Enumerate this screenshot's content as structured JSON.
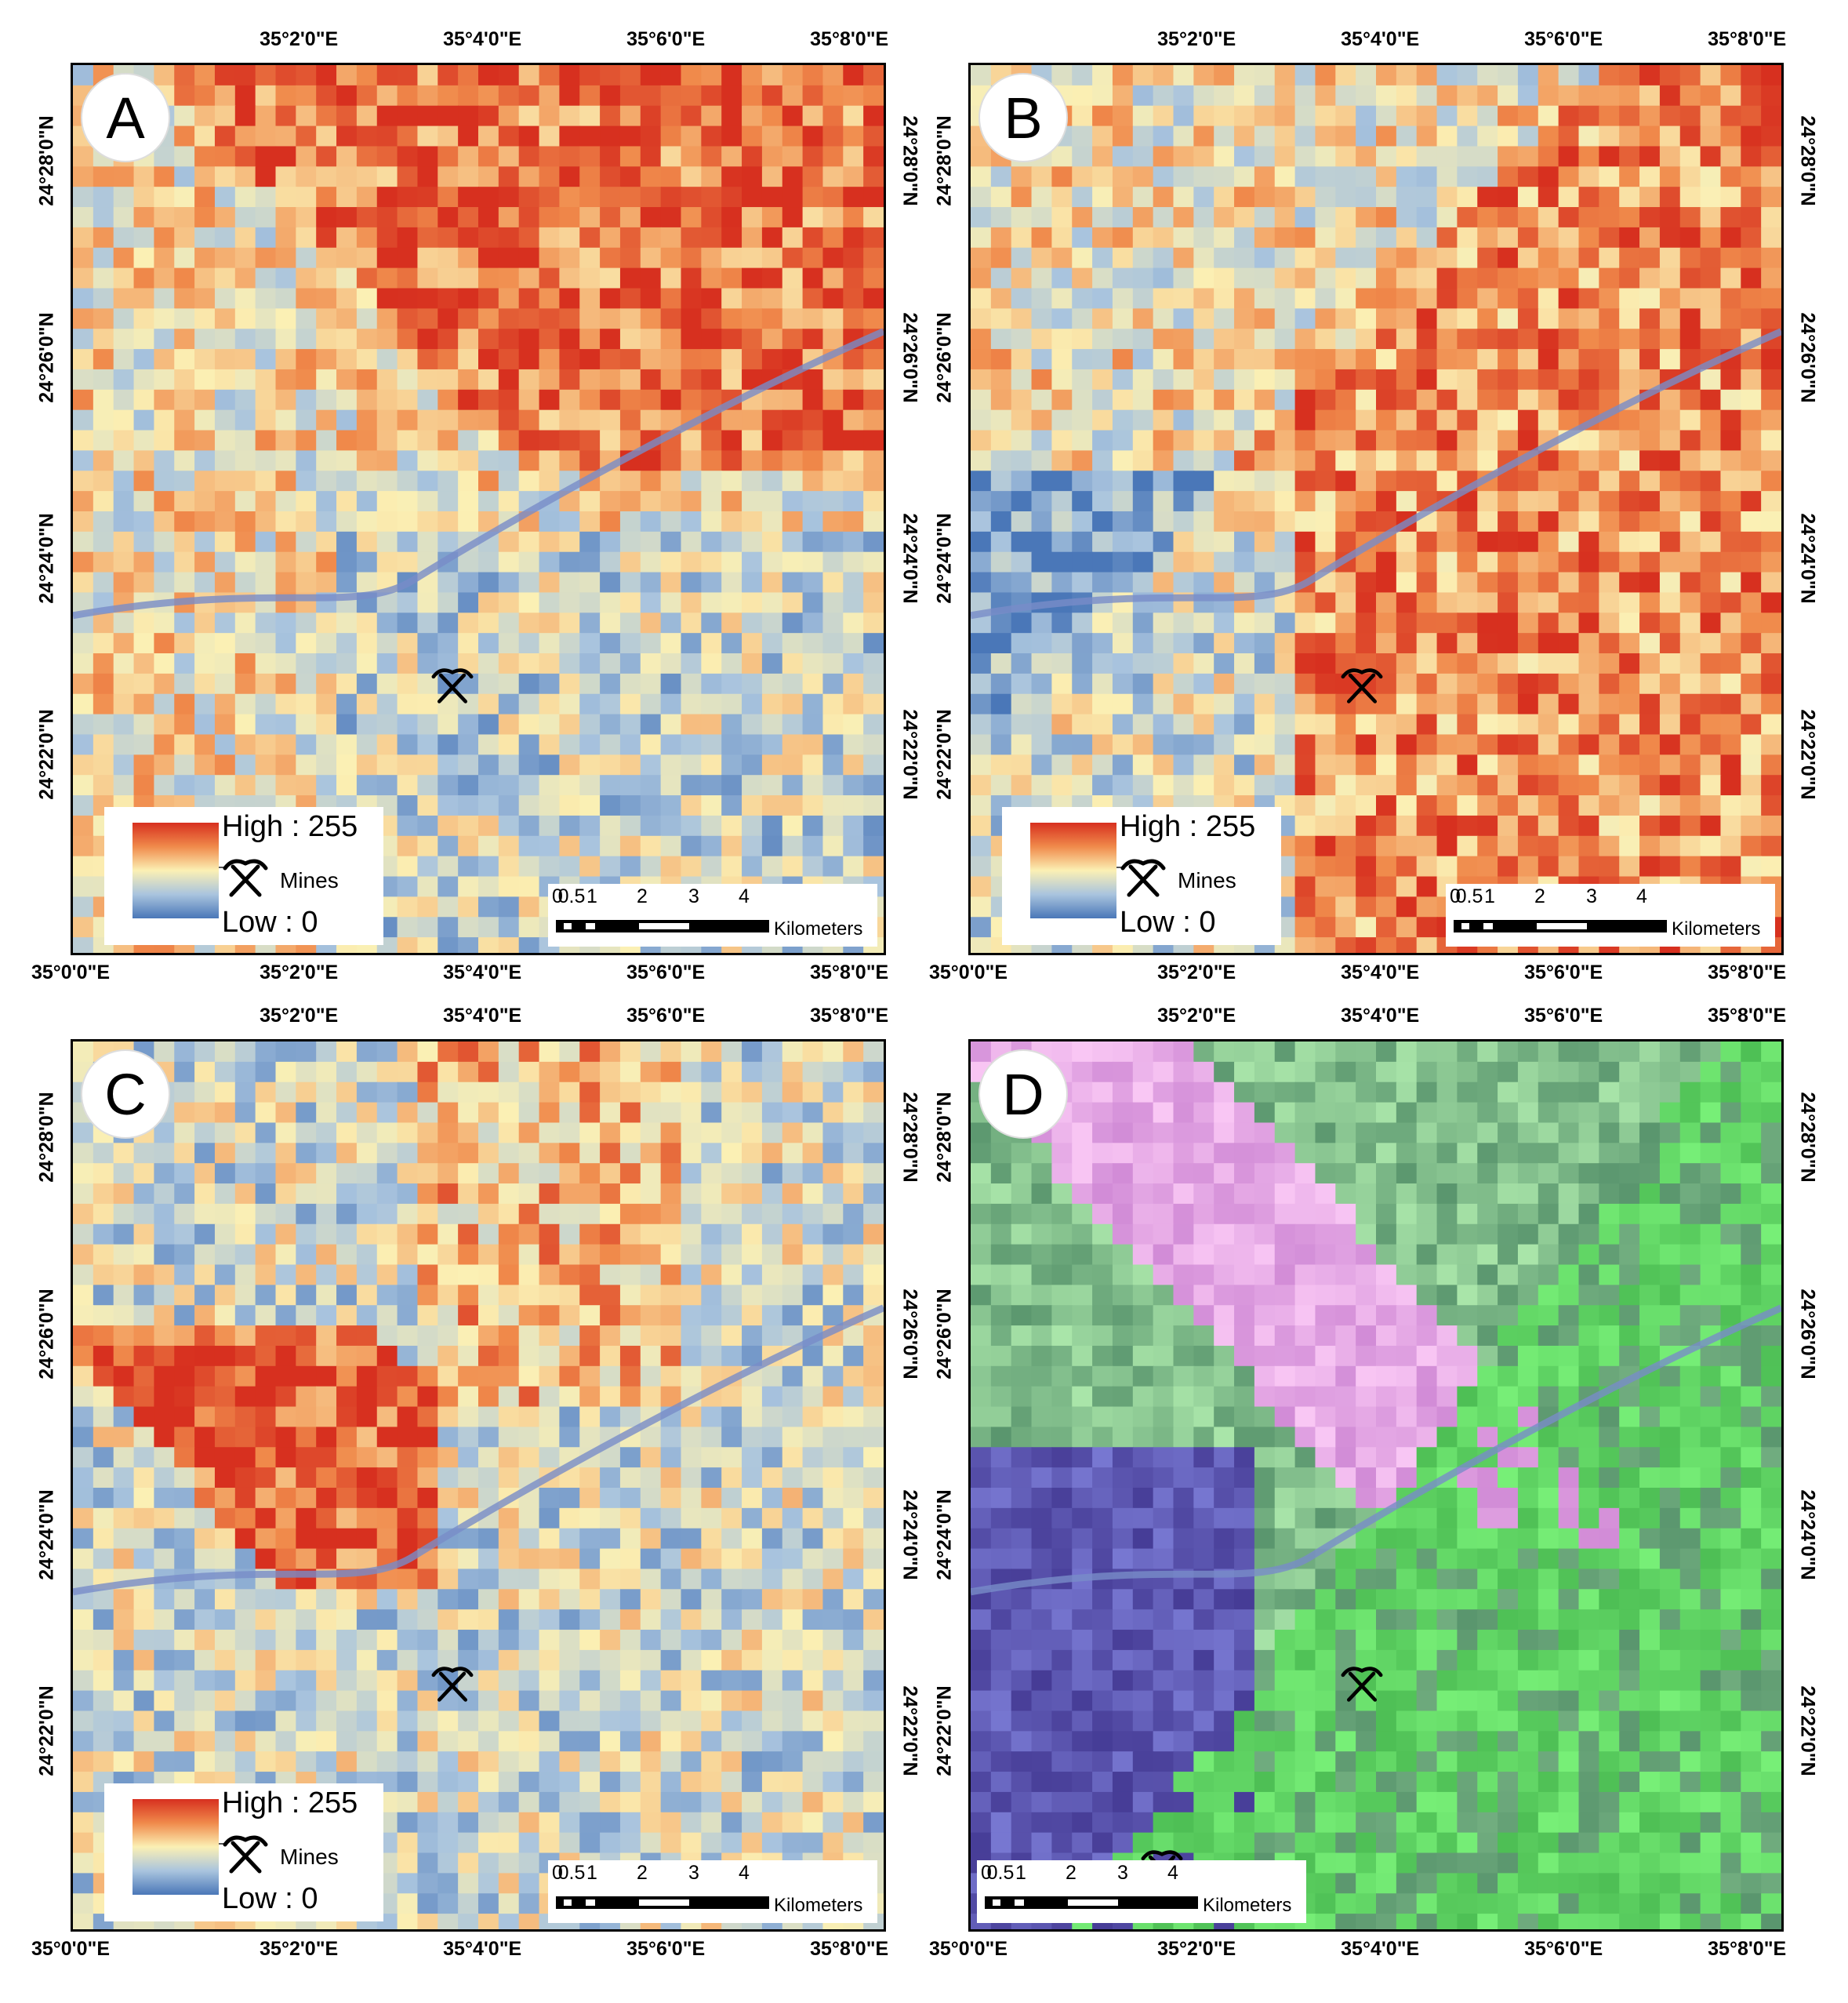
{
  "panels": [
    {
      "id": "A",
      "letter": "A",
      "style": "ramp",
      "legend": true,
      "mines": [
        [
          0.465,
          0.695
        ]
      ]
    },
    {
      "id": "B",
      "letter": "B",
      "style": "ramp-b",
      "legend": true,
      "mines": [
        [
          0.48,
          0.695
        ]
      ]
    },
    {
      "id": "C",
      "letter": "C",
      "style": "ramp-c",
      "legend": true,
      "mines": [
        [
          0.465,
          0.72
        ]
      ]
    },
    {
      "id": "D",
      "letter": "D",
      "style": "rgb",
      "legend": false,
      "mines": [
        [
          0.48,
          0.72
        ],
        [
          0.235,
          0.925
        ]
      ]
    }
  ],
  "axes": {
    "lon_top": [
      "35°2'0\"E",
      "35°4'0\"E",
      "35°6'0\"E",
      "35°8'0\"E"
    ],
    "lon_bottom": [
      "35°0'0\"E",
      "35°2'0\"E",
      "35°4'0\"E",
      "35°6'0\"E",
      "35°8'0\"E"
    ],
    "lat": [
      "24°28'0\"N",
      "24°26'0\"N",
      "24°24'0\"N",
      "24°22'0\"N"
    ]
  },
  "legend": {
    "high": "High : 255",
    "low": "Low : 0",
    "mines": "Mines"
  },
  "scalebar": {
    "ticks": [
      "0",
      "0.5",
      "1",
      "2",
      "3",
      "4"
    ],
    "unit": "Kilometers"
  }
}
